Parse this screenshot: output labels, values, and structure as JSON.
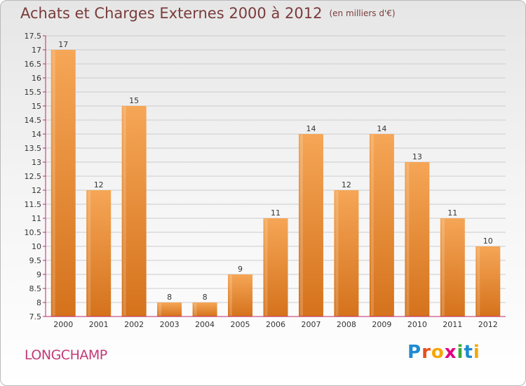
{
  "title": "Achats et Charges Externes 2000 à 2012",
  "subtitle": "(en milliers d'€)",
  "commune": "LONGCHAMP",
  "logo": {
    "text": "Proxiti",
    "colors": [
      "#1f8bd0",
      "#e94e1b",
      "#f7a600",
      "#e3007e",
      "#3aaa35",
      "#1f8bd0",
      "#f7a600"
    ]
  },
  "colors": {
    "bar_top": "#f5a656",
    "bar_bottom": "#d5721c",
    "axis": "#c0286e",
    "grid": "#cccccc"
  },
  "chart_data": {
    "type": "bar",
    "categories": [
      "2000",
      "2001",
      "2002",
      "2003",
      "2004",
      "2005",
      "2006",
      "2007",
      "2008",
      "2009",
      "2010",
      "2011",
      "2012"
    ],
    "values": [
      17,
      12,
      15,
      8,
      8,
      9,
      11,
      14,
      12,
      14,
      13,
      11,
      10
    ],
    "value_labels": [
      "17",
      "12",
      "15",
      "8",
      "8",
      "9",
      "11",
      "14",
      "12",
      "14",
      "13",
      "11",
      "10"
    ],
    "ylim": [
      7.5,
      17.5
    ],
    "yticks": [
      7.5,
      8,
      8.5,
      9,
      9.5,
      10,
      10.5,
      11,
      11.5,
      12,
      12.5,
      13,
      13.5,
      14,
      14.5,
      15,
      15.5,
      16,
      16.5,
      17,
      17.5
    ],
    "grid": true,
    "legend": false
  }
}
